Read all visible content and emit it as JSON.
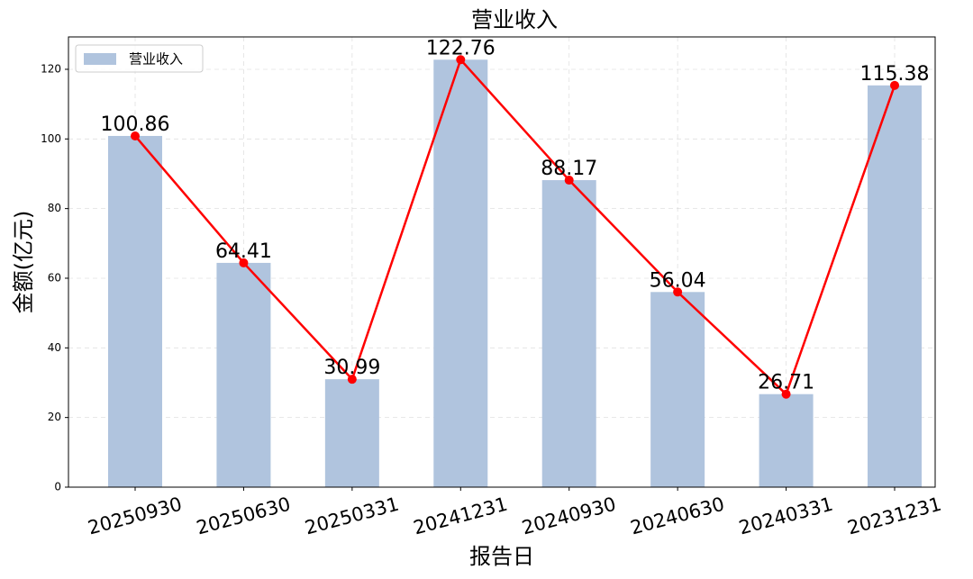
{
  "chart_data": {
    "type": "bar",
    "title": "营业收入",
    "x_label": "报告日",
    "y_label": "金额(亿元)",
    "categories": [
      "20250930",
      "20250630",
      "20250331",
      "20241231",
      "20240930",
      "20240630",
      "20240331",
      "20231231"
    ],
    "series": [
      {
        "name": "营业收入",
        "color": "#b0c4de",
        "line_color": "#ff0000",
        "values": [
          100.86,
          64.41,
          30.99,
          122.76,
          88.17,
          56.04,
          26.71,
          115.38
        ]
      }
    ],
    "ylim": [
      0,
      129.3
    ],
    "yticks": [
      0,
      20,
      40,
      60,
      80,
      100,
      120
    ],
    "grid": true,
    "legend": "upper left"
  }
}
